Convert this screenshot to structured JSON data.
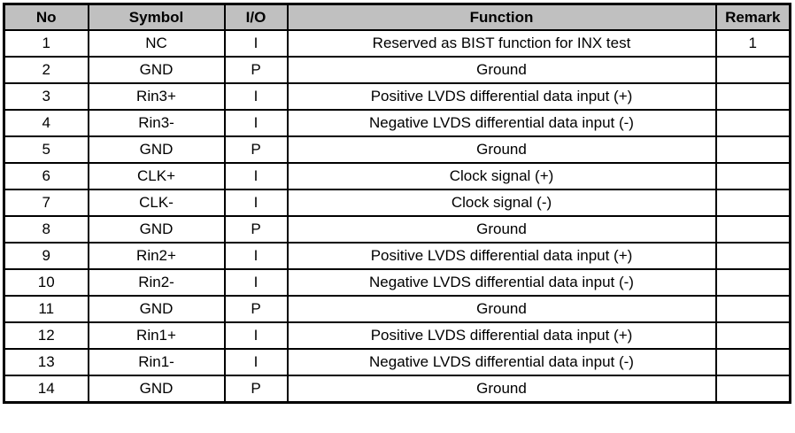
{
  "table": {
    "title": "pin-definition-table",
    "headers": {
      "no": "No",
      "symbol": "Symbol",
      "io": "I/O",
      "function": "Function",
      "remark": "Remark"
    },
    "colors": {
      "header_bg": "#c0c0c0",
      "border": "#000000",
      "row_bg": "#ffffff",
      "text": "#000000"
    },
    "rows": [
      {
        "no": "1",
        "symbol": "NC",
        "io": "I",
        "function": "Reserved as BIST function for INX test",
        "remark": "1"
      },
      {
        "no": "2",
        "symbol": "GND",
        "io": "P",
        "function": "Ground",
        "remark": ""
      },
      {
        "no": "3",
        "symbol": "Rin3+",
        "io": "I",
        "function": "Positive LVDS differential data input (+)",
        "remark": ""
      },
      {
        "no": "4",
        "symbol": "Rin3-",
        "io": "I",
        "function": "Negative LVDS differential data input (-)",
        "remark": ""
      },
      {
        "no": "5",
        "symbol": "GND",
        "io": "P",
        "function": "Ground",
        "remark": ""
      },
      {
        "no": "6",
        "symbol": "CLK+",
        "io": "I",
        "function": "Clock signal (+)",
        "remark": ""
      },
      {
        "no": "7",
        "symbol": "CLK-",
        "io": "I",
        "function": "Clock signal (-)",
        "remark": ""
      },
      {
        "no": "8",
        "symbol": "GND",
        "io": "P",
        "function": "Ground",
        "remark": ""
      },
      {
        "no": "9",
        "symbol": "Rin2+",
        "io": "I",
        "function": "Positive LVDS differential data input (+)",
        "remark": ""
      },
      {
        "no": "10",
        "symbol": "Rin2-",
        "io": "I",
        "function": "Negative LVDS differential data input (-)",
        "remark": ""
      },
      {
        "no": "11",
        "symbol": "GND",
        "io": "P",
        "function": "Ground",
        "remark": ""
      },
      {
        "no": "12",
        "symbol": "Rin1+",
        "io": "I",
        "function": "Positive LVDS differential data input (+)",
        "remark": ""
      },
      {
        "no": "13",
        "symbol": "Rin1-",
        "io": "I",
        "function": "Negative LVDS differential data input (-)",
        "remark": ""
      },
      {
        "no": "14",
        "symbol": "GND",
        "io": "P",
        "function": "Ground",
        "remark": ""
      }
    ]
  }
}
